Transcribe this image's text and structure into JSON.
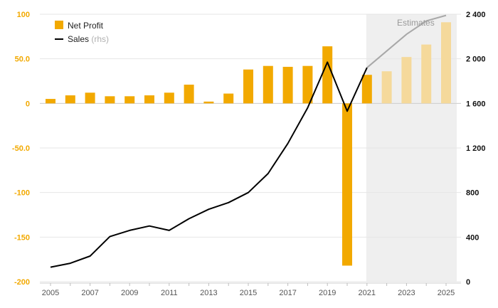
{
  "chart_data": {
    "type": "bar",
    "x": [
      2005,
      2006,
      2007,
      2008,
      2009,
      2010,
      2011,
      2012,
      2013,
      2014,
      2015,
      2016,
      2017,
      2018,
      2019,
      2020,
      2021,
      2022,
      2023,
      2024,
      2025
    ],
    "x_tick_labels": [
      "2005",
      "2007",
      "2009",
      "2011",
      "2013",
      "2015",
      "2017",
      "2019",
      "2021",
      "2023",
      "2025"
    ],
    "estimate_from": 2021,
    "series": [
      {
        "name": "Net Profit",
        "kind": "bar",
        "axis": "left",
        "values": [
          5,
          9,
          12,
          8,
          8,
          9,
          12,
          21,
          2,
          11,
          38,
          42,
          41,
          42,
          64,
          -182,
          32,
          36,
          52,
          66,
          91
        ]
      },
      {
        "name": "Sales",
        "name_suffix": "(rhs)",
        "kind": "line",
        "axis": "right",
        "values": [
          130,
          165,
          230,
          405,
          460,
          500,
          460,
          565,
          650,
          710,
          800,
          970,
          1240,
          1560,
          1970,
          1530,
          1920,
          2070,
          2220,
          2340,
          2390
        ]
      }
    ],
    "y_left": {
      "lim": [
        -200,
        100
      ],
      "ticks": [
        "100",
        "50.0",
        "0",
        "-50.0",
        "-100",
        "-150",
        "-200"
      ],
      "tick_values": [
        100,
        50,
        0,
        -50,
        -100,
        -150,
        -200
      ]
    },
    "y_right": {
      "lim": [
        0,
        2400
      ],
      "ticks": [
        "2 400",
        "2 000",
        "1 600",
        "1 200",
        "800",
        "400",
        "0"
      ],
      "tick_values": [
        2400,
        2000,
        1600,
        1200,
        800,
        400,
        0
      ]
    },
    "estimates_label": "Estimates",
    "legend_position": "top-left",
    "grid": true,
    "colors": {
      "bar": "#f2a900",
      "bar_estimate": "#f5d99b",
      "line": "#000000",
      "line_estimate": "#a8a8a8",
      "estimate_shade": "#efefef",
      "grid": "#e6e6e6"
    }
  }
}
